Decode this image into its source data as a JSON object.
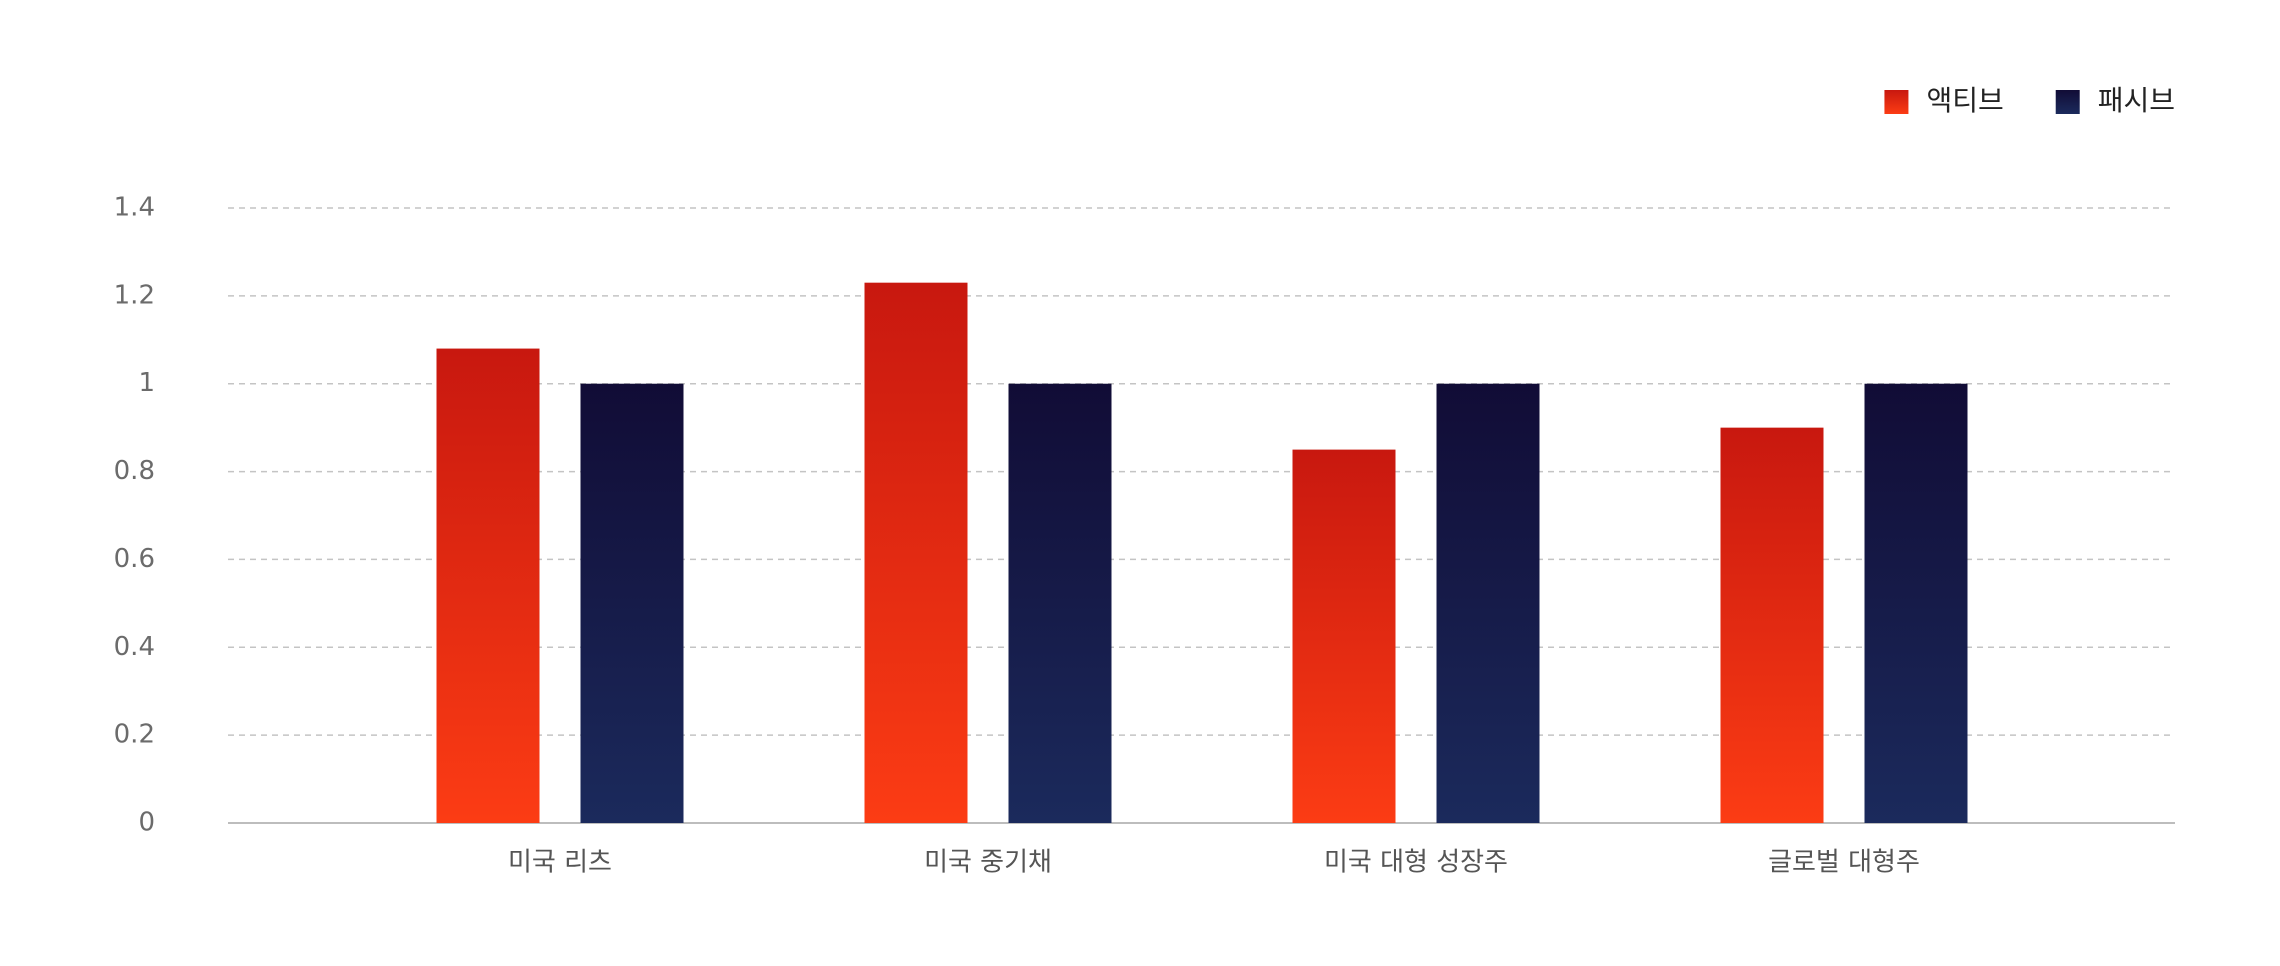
{
  "chart_data": {
    "type": "bar",
    "categories": [
      "미국 리츠",
      "미국 중기채",
      "미국 대형 성장주",
      "글로벌 대형주"
    ],
    "series": [
      {
        "name": "액티브",
        "color": "#e02a12",
        "gradient": [
          "#c8180f",
          "#fc3c14"
        ],
        "values": [
          1.08,
          1.23,
          0.85,
          0.9
        ]
      },
      {
        "name": "패시브",
        "color": "#141b4a",
        "gradient": [
          "#110c36",
          "#1b2a5c"
        ],
        "values": [
          1.0,
          1.0,
          1.0,
          1.0
        ]
      }
    ],
    "ylim": [
      0,
      1.4
    ],
    "yticks": [
      0,
      0.2,
      0.4,
      0.6,
      0.8,
      1,
      1.2,
      1.4
    ],
    "grid": true,
    "legend": "top-right"
  }
}
